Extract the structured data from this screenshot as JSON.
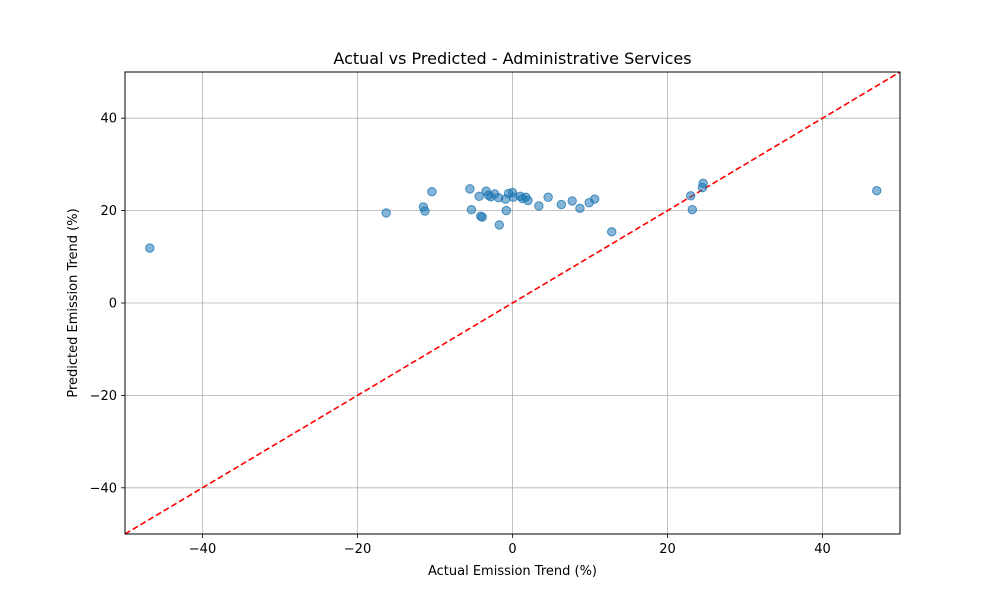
{
  "chart_data": {
    "type": "scatter",
    "title": "Actual vs Predicted - Administrative Services",
    "xlabel": "Actual Emission Trend (%)",
    "ylabel": "Predicted Emission Trend (%)",
    "xlim": [
      -50,
      50
    ],
    "ylim": [
      -50,
      50
    ],
    "xticks": [
      -40,
      -20,
      0,
      20,
      40
    ],
    "yticks": [
      -40,
      -20,
      0,
      20,
      40
    ],
    "xtick_labels": [
      "−40",
      "−20",
      "0",
      "20",
      "40"
    ],
    "ytick_labels": [
      "−40",
      "−20",
      "0",
      "20",
      "40"
    ],
    "grid": true,
    "reference_line": {
      "type": "y=x",
      "color": "#ff0000",
      "style": "dashed"
    },
    "point_color": "#1f77b4",
    "points": [
      {
        "x": -46.8,
        "y": 11.9
      },
      {
        "x": -16.3,
        "y": 19.5
      },
      {
        "x": -11.5,
        "y": 20.8
      },
      {
        "x": -11.3,
        "y": 19.9
      },
      {
        "x": -10.4,
        "y": 24.1
      },
      {
        "x": -5.5,
        "y": 24.7
      },
      {
        "x": -5.3,
        "y": 20.2
      },
      {
        "x": -4.3,
        "y": 23.1
      },
      {
        "x": -4.1,
        "y": 18.8
      },
      {
        "x": -3.9,
        "y": 18.6
      },
      {
        "x": -3.4,
        "y": 24.2
      },
      {
        "x": -3.1,
        "y": 23.3
      },
      {
        "x": -2.8,
        "y": 23.0
      },
      {
        "x": -2.3,
        "y": 23.6
      },
      {
        "x": -1.8,
        "y": 22.8
      },
      {
        "x": -1.7,
        "y": 16.9
      },
      {
        "x": -0.9,
        "y": 22.5
      },
      {
        "x": -0.8,
        "y": 20.0
      },
      {
        "x": -0.5,
        "y": 23.7
      },
      {
        "x": 0.0,
        "y": 23.9
      },
      {
        "x": 0.1,
        "y": 22.9
      },
      {
        "x": 1.0,
        "y": 23.1
      },
      {
        "x": 1.3,
        "y": 22.6
      },
      {
        "x": 1.7,
        "y": 22.9
      },
      {
        "x": 2.0,
        "y": 22.2
      },
      {
        "x": 3.4,
        "y": 21.0
      },
      {
        "x": 4.6,
        "y": 22.9
      },
      {
        "x": 6.3,
        "y": 21.3
      },
      {
        "x": 7.7,
        "y": 22.1
      },
      {
        "x": 8.7,
        "y": 20.5
      },
      {
        "x": 9.9,
        "y": 21.7
      },
      {
        "x": 10.6,
        "y": 22.5
      },
      {
        "x": 12.8,
        "y": 15.4
      },
      {
        "x": 23.0,
        "y": 23.2
      },
      {
        "x": 23.2,
        "y": 20.2
      },
      {
        "x": 24.5,
        "y": 25.0
      },
      {
        "x": 24.6,
        "y": 25.9
      },
      {
        "x": 47.0,
        "y": 24.3
      }
    ]
  }
}
